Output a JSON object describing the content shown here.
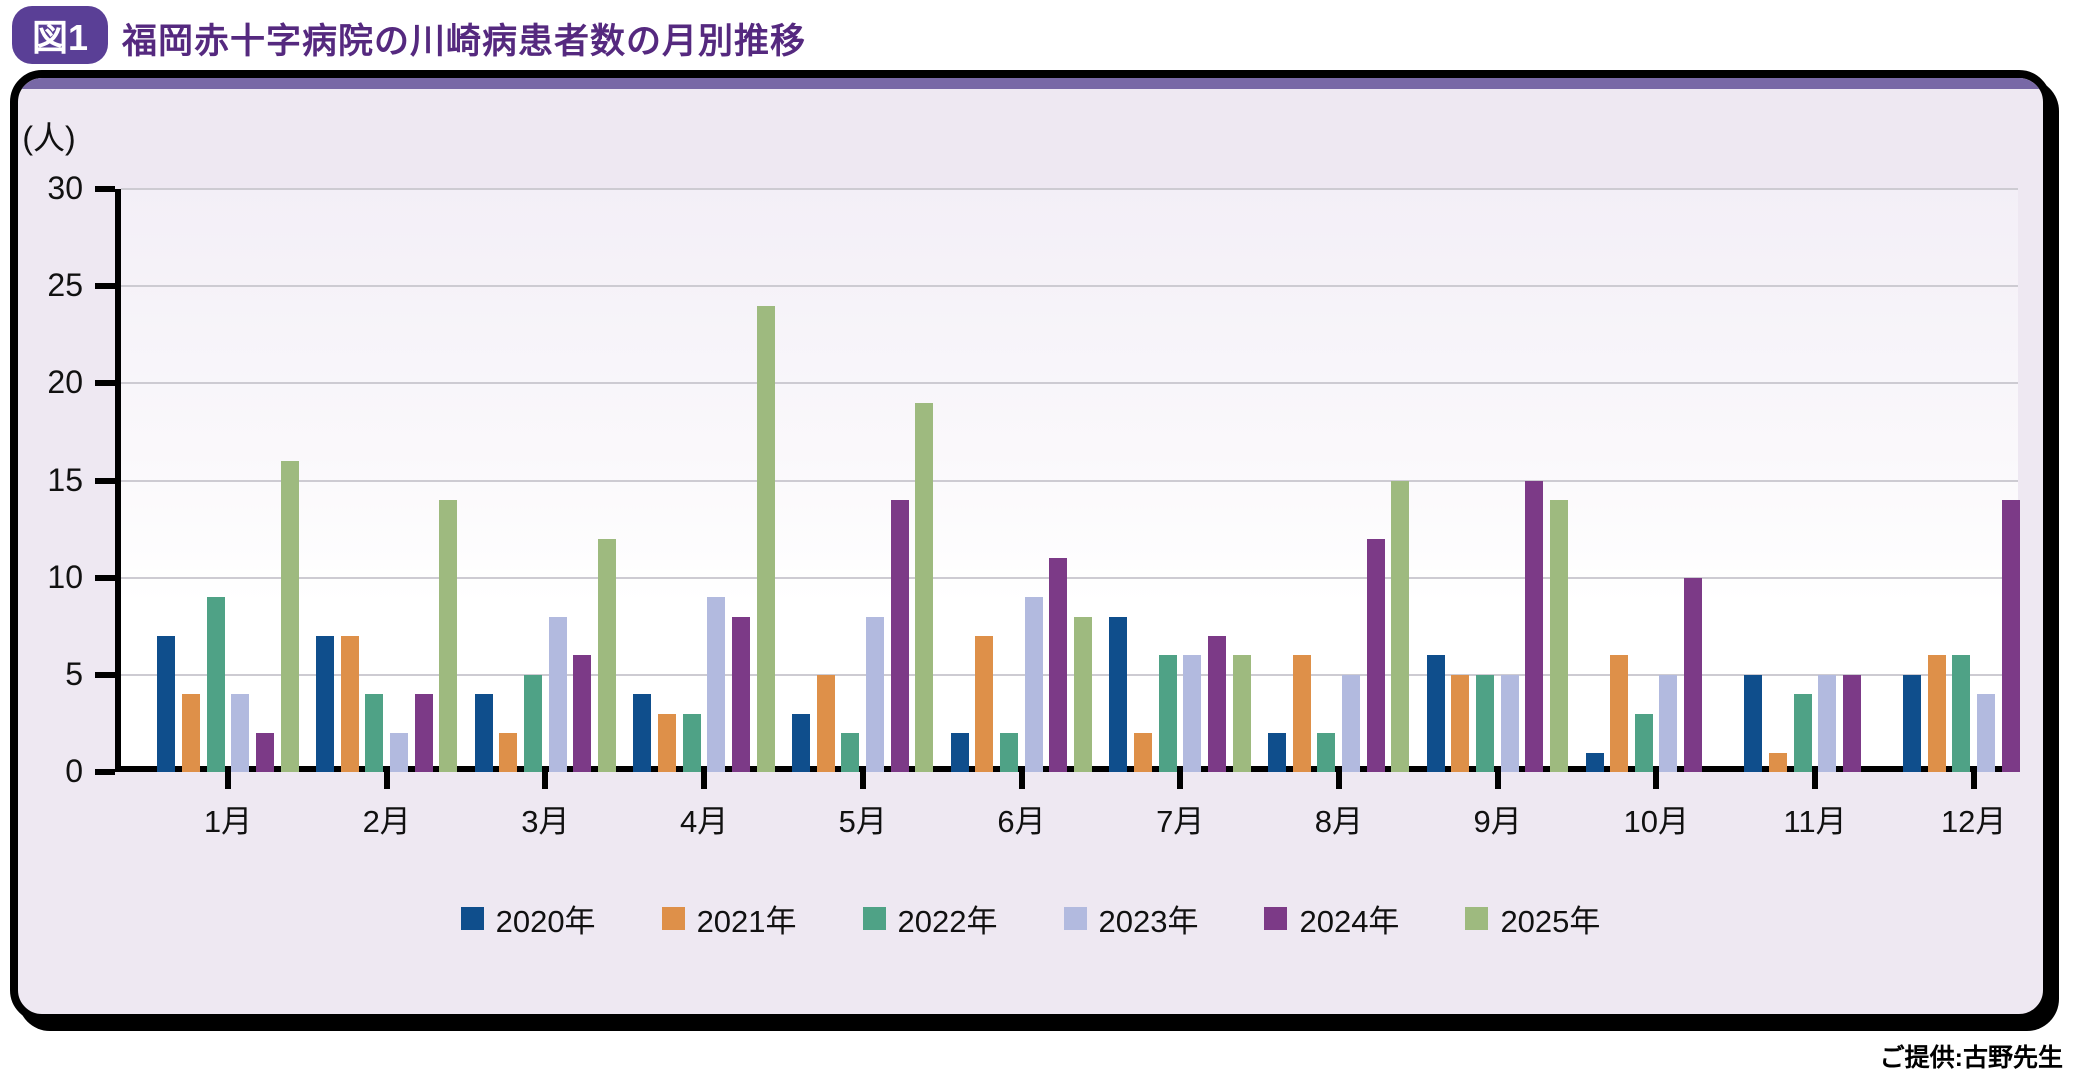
{
  "figure": {
    "badge": "図1",
    "title": "福岡赤十字病院の川崎病患者数の月別推移",
    "credit": "ご提供:古野先生"
  },
  "chart_data": {
    "type": "bar",
    "title": "福岡赤十字病院の川崎病患者数の月別推移",
    "ylabel": "(人)",
    "xlabel": "",
    "ylim": [
      0,
      30
    ],
    "yticks": [
      0,
      5,
      10,
      15,
      20,
      25,
      30
    ],
    "grid": true,
    "legend_position": "bottom",
    "categories": [
      "1月",
      "2月",
      "3月",
      "4月",
      "5月",
      "6月",
      "7月",
      "8月",
      "9月",
      "10月",
      "11月",
      "12月"
    ],
    "series": [
      {
        "name": "2020年",
        "color": "#0f4e8c",
        "values": [
          7,
          7,
          4,
          4,
          3,
          2,
          8,
          2,
          6,
          1,
          5,
          5
        ]
      },
      {
        "name": "2021年",
        "color": "#de9049",
        "values": [
          4,
          7,
          2,
          3,
          5,
          7,
          2,
          6,
          5,
          6,
          1,
          6
        ]
      },
      {
        "name": "2022年",
        "color": "#4fa286",
        "values": [
          9,
          4,
          5,
          3,
          2,
          2,
          6,
          2,
          5,
          3,
          4,
          6
        ]
      },
      {
        "name": "2023年",
        "color": "#b2badf",
        "values": [
          4,
          2,
          8,
          9,
          8,
          9,
          6,
          5,
          5,
          5,
          5,
          4
        ]
      },
      {
        "name": "2024年",
        "color": "#7c3a87",
        "values": [
          2,
          4,
          6,
          8,
          14,
          11,
          7,
          12,
          15,
          10,
          5,
          14
        ]
      },
      {
        "name": "2025年",
        "color": "#9eba7f",
        "values": [
          16,
          14,
          12,
          24,
          19,
          8,
          6,
          15,
          14,
          null,
          null,
          null
        ]
      }
    ],
    "colors": {
      "panel_background": "#eee8f2",
      "accent_stripe": "#7868a6",
      "title_text": "#55297f",
      "badge_background": "#5a3f96",
      "gridline": "#cdcbd2"
    }
  }
}
